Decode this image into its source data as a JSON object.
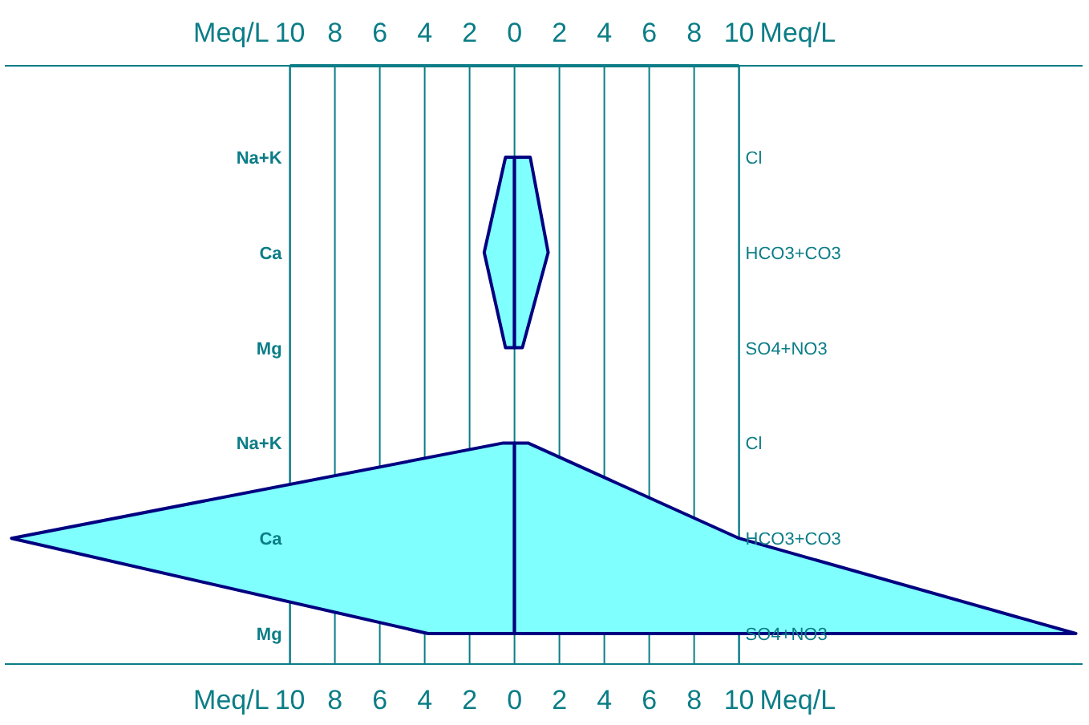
{
  "chart_data": {
    "type": "area",
    "orientation": "horizontal",
    "xlabel": "Meq/L",
    "x2label": "Meq/L",
    "categories": [
      "Na+K",
      "Ca",
      "Mg",
      "Na+K",
      "Ca",
      "Mg"
    ],
    "y2_categories": [
      "Cl",
      "HCO3+CO3",
      "SO4+NO3",
      "Cl",
      "HCO3+CO3",
      "SO4+NO3"
    ],
    "series": [
      {
        "color": "#80ffff",
        "values": [
          -0.4,
          -1.35,
          -0.4,
          null,
          null,
          null
        ]
      },
      {
        "color": "#80ffff",
        "values": [
          0.7,
          1.5,
          0.35,
          null,
          null,
          null
        ]
      },
      {
        "color": "#80ffff",
        "values": [
          null,
          null,
          null,
          -0.5,
          -22.4,
          -3.85
        ]
      },
      {
        "color": "#80ffff",
        "values": [
          null,
          null,
          null,
          0.6,
          10,
          25
        ]
      }
    ],
    "xlim": [
      -22.7,
      25.3
    ],
    "xticks": [
      {
        "value": -10,
        "label": "10"
      },
      {
        "value": -8,
        "label": "8"
      },
      {
        "value": -6,
        "label": "6"
      },
      {
        "value": -4,
        "label": "4"
      },
      {
        "value": -2,
        "label": "2"
      },
      0,
      2,
      4,
      6,
      8,
      10
    ],
    "x2lim": [
      -22.7,
      25.3
    ],
    "x2ticks": [
      {
        "value": -10,
        "label": "10"
      },
      {
        "value": -8,
        "label": "8"
      },
      {
        "value": -6,
        "label": "6"
      },
      {
        "value": -4,
        "label": "4"
      },
      {
        "value": -2,
        "label": "2"
      },
      0,
      2,
      4,
      6,
      8,
      10
    ],
    "grid": "x"
  }
}
